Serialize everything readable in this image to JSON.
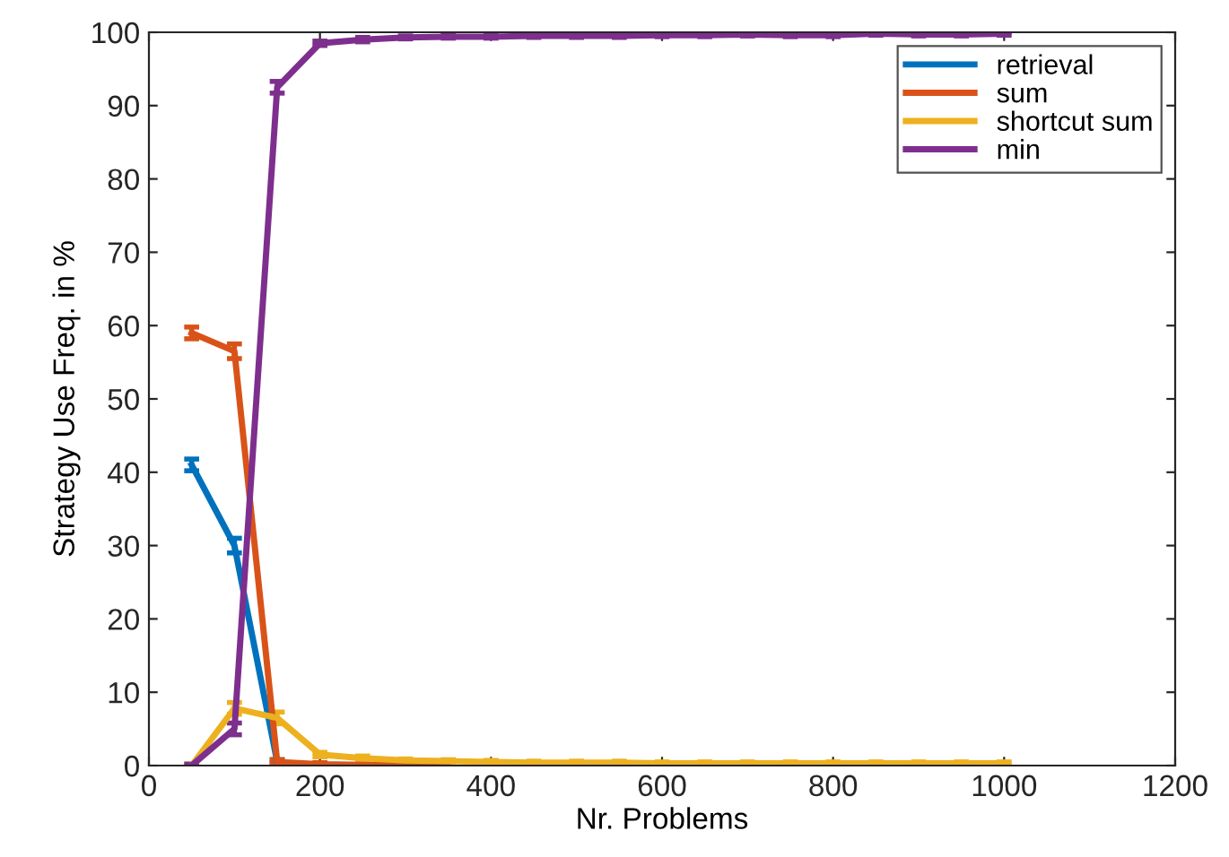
{
  "chart_data": {
    "type": "line",
    "xlabel": "Nr. Problems",
    "ylabel": "Strategy Use Freq. in %",
    "x": [
      50,
      100,
      150,
      200,
      250,
      300,
      350,
      400,
      450,
      500,
      550,
      600,
      650,
      700,
      750,
      800,
      850,
      900,
      950,
      1000
    ],
    "xlim": [
      0,
      1200
    ],
    "xticks": [
      0,
      200,
      400,
      600,
      800,
      1000,
      1200
    ],
    "ylim": [
      0,
      100
    ],
    "yticks": [
      0,
      10,
      20,
      30,
      40,
      50,
      60,
      70,
      80,
      90,
      100
    ],
    "grid": false,
    "legend": "top right",
    "marker": "none",
    "line_style": "solid",
    "series": [
      {
        "name": "retrieval",
        "color": "#0072bd",
        "values": [
          41,
          30,
          0.5,
          null,
          null,
          null,
          null,
          null,
          null,
          null,
          null,
          null,
          null,
          null,
          null,
          null,
          null,
          null,
          null,
          null
        ],
        "errors": [
          0.8,
          1,
          0.3,
          null,
          null,
          null,
          null,
          null,
          null,
          null,
          null,
          null,
          null,
          null,
          null,
          null,
          null,
          null,
          null,
          null
        ]
      },
      {
        "name": "sum",
        "color": "#d95319",
        "values": [
          59,
          56.5,
          0.5,
          0.2,
          0.1,
          0.1,
          0.1,
          null,
          null,
          null,
          null,
          null,
          null,
          null,
          null,
          null,
          null,
          null,
          null,
          null
        ],
        "errors": [
          0.8,
          1,
          0.3,
          0.2,
          0.2,
          0.2,
          0.2,
          null,
          null,
          null,
          null,
          null,
          null,
          null,
          null,
          null,
          null,
          null,
          null,
          null
        ]
      },
      {
        "name": "shortcut sum",
        "color": "#edb120",
        "values": [
          0,
          7.8,
          6.5,
          1.5,
          1,
          0.7,
          0.6,
          0.5,
          0.4,
          0.4,
          0.4,
          0.3,
          0.3,
          0.3,
          0.3,
          0.3,
          0.3,
          0.3,
          0.3,
          0.3
        ],
        "errors": [
          0.2,
          0.8,
          0.8,
          0.3,
          0.3,
          0.2,
          0.2,
          0.2,
          0.2,
          0.2,
          0.2,
          0.2,
          0.2,
          0.2,
          0.2,
          0.2,
          0.2,
          0.2,
          0.2,
          0.2
        ]
      },
      {
        "name": "min",
        "color": "#7e2f8e",
        "values": [
          0,
          5,
          92.5,
          98.5,
          99,
          99.3,
          99.4,
          99.4,
          99.5,
          99.5,
          99.5,
          99.6,
          99.6,
          99.7,
          99.6,
          99.6,
          99.8,
          99.7,
          99.7,
          99.8
        ],
        "errors": [
          0.2,
          0.8,
          0.8,
          0.3,
          0.3,
          0.2,
          0.2,
          0.2,
          0.2,
          0.2,
          0.2,
          0.2,
          0.2,
          0.2,
          0.2,
          0.2,
          0.2,
          0.2,
          0.2,
          0.2
        ]
      }
    ]
  }
}
